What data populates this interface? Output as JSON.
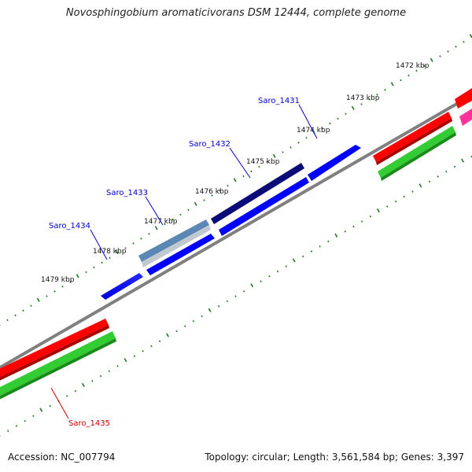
{
  "title": "Novosphingobium aromaticivorans DSM 12444, complete genome",
  "accession": "Accession: NC_007794",
  "stats": "Topology: circular; Length: 3,561,584 bp; Genes: 3,397",
  "colors": {
    "backbone": "#808080",
    "ticks": "#1a7a1a",
    "gene_blue": "#0000ff",
    "gene_navy": "#0a0a78",
    "gene_steel": "#5a87b4",
    "gene_red": "#ff0000",
    "gene_green": "#33cc33",
    "gene_pink": "#ff3399",
    "label_blue": "#0000cc",
    "label_red": "#cc0000"
  },
  "axis_labels": [
    "1472 kbp",
    "1473 kbp",
    "1474 kbp",
    "1475 kbp",
    "1476 kbp",
    "1477 kbp",
    "1478 kbp",
    "1479 kbp"
  ],
  "gene_labels": [
    {
      "text": "Saro_1431",
      "color": "label_blue"
    },
    {
      "text": "Saro_1432",
      "color": "label_blue"
    },
    {
      "text": "Saro_1433",
      "color": "label_blue"
    },
    {
      "text": "Saro_1434",
      "color": "label_blue"
    },
    {
      "text": "Saro_1435",
      "color": "label_red"
    }
  ]
}
